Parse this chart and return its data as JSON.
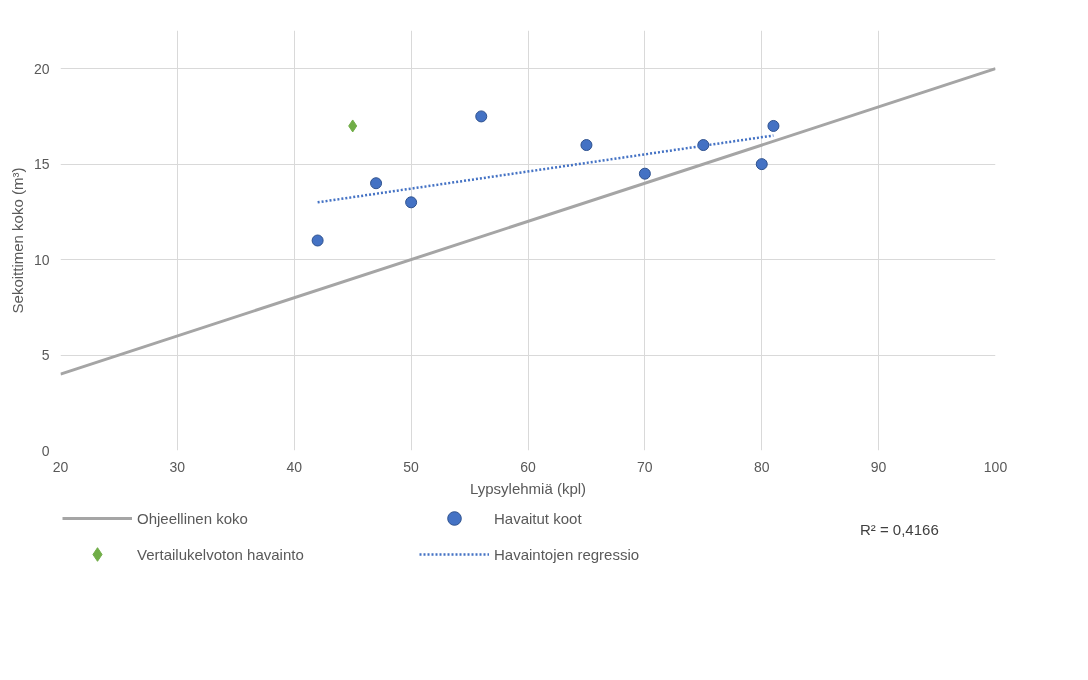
{
  "chart_data": {
    "type": "scatter",
    "xlabel": "Lypsylehmiä (kpl)",
    "ylabel": "Sekoittimen koko (m³)",
    "xlim": [
      20,
      100
    ],
    "ylim": [
      0,
      22
    ],
    "xticks": [
      20,
      30,
      40,
      50,
      60,
      70,
      80,
      90,
      100
    ],
    "yticks": [
      0,
      5,
      10,
      15,
      20
    ],
    "grid": true,
    "legend": "bottom",
    "series": [
      {
        "name": "Ohjeellinen koko",
        "type": "line",
        "line_style": "solid",
        "marker": "none",
        "color": "#a5a5a5",
        "x": [
          20,
          100
        ],
        "values": [
          4,
          20
        ]
      },
      {
        "name": "Havaitut koot",
        "marker": "circle",
        "color": "#4472c4",
        "x": [
          42,
          47,
          50,
          56,
          65,
          70,
          75,
          80,
          81
        ],
        "values": [
          11,
          14,
          13,
          17.5,
          16,
          14.5,
          16,
          15,
          17
        ]
      },
      {
        "name": "Vertailukelvoton havainto",
        "marker": "diamond",
        "color": "#70ad47",
        "x": [
          45
        ],
        "values": [
          17
        ]
      },
      {
        "name": "Havaintojen regressio",
        "type": "line",
        "line_style": "dotted",
        "marker": "none",
        "color": "#4472c4",
        "x": [
          42,
          81
        ],
        "values": [
          13,
          16.5
        ]
      }
    ],
    "annotations": [
      "R² = 0,4166"
    ]
  }
}
